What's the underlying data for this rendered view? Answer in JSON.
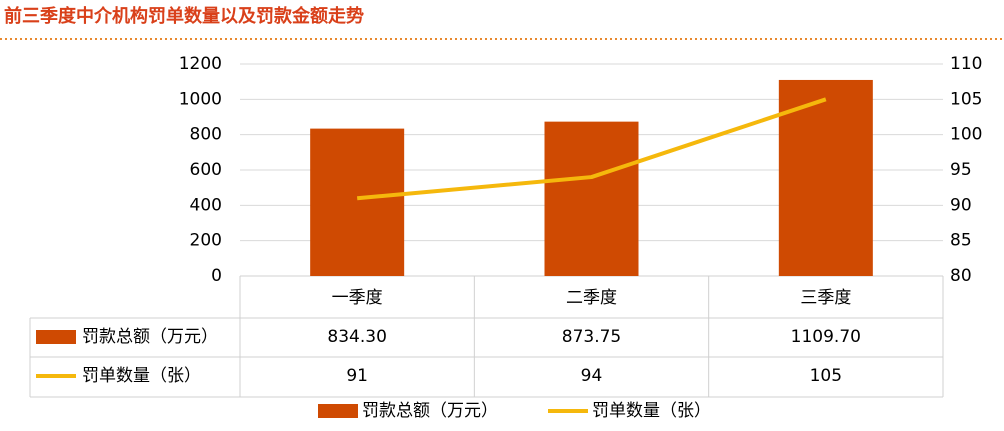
{
  "chart_data": {
    "type": "bar",
    "title": "前三季度中介机构罚单数量以及罚款金额走势",
    "categories": [
      "一季度",
      "二季度",
      "三季度"
    ],
    "series": [
      {
        "name": "罚款总额（万元）",
        "type": "bar",
        "color": "#cf4a02",
        "values": [
          834.3,
          873.75,
          1109.7
        ],
        "value_labels": [
          "834.30",
          "873.75",
          "1109.70"
        ]
      },
      {
        "name": "罚单数量（张）",
        "type": "line",
        "axis": "y2",
        "color": "#f5b80c",
        "values": [
          91,
          94,
          105
        ]
      }
    ],
    "ylim": [
      0,
      1200
    ],
    "yticks": [
      0,
      200,
      400,
      600,
      800,
      1000,
      1200
    ],
    "y2lim": [
      80,
      110
    ],
    "y2ticks": [
      80,
      85,
      90,
      95,
      100,
      105,
      110
    ],
    "grid": true,
    "legend": "bottom"
  }
}
